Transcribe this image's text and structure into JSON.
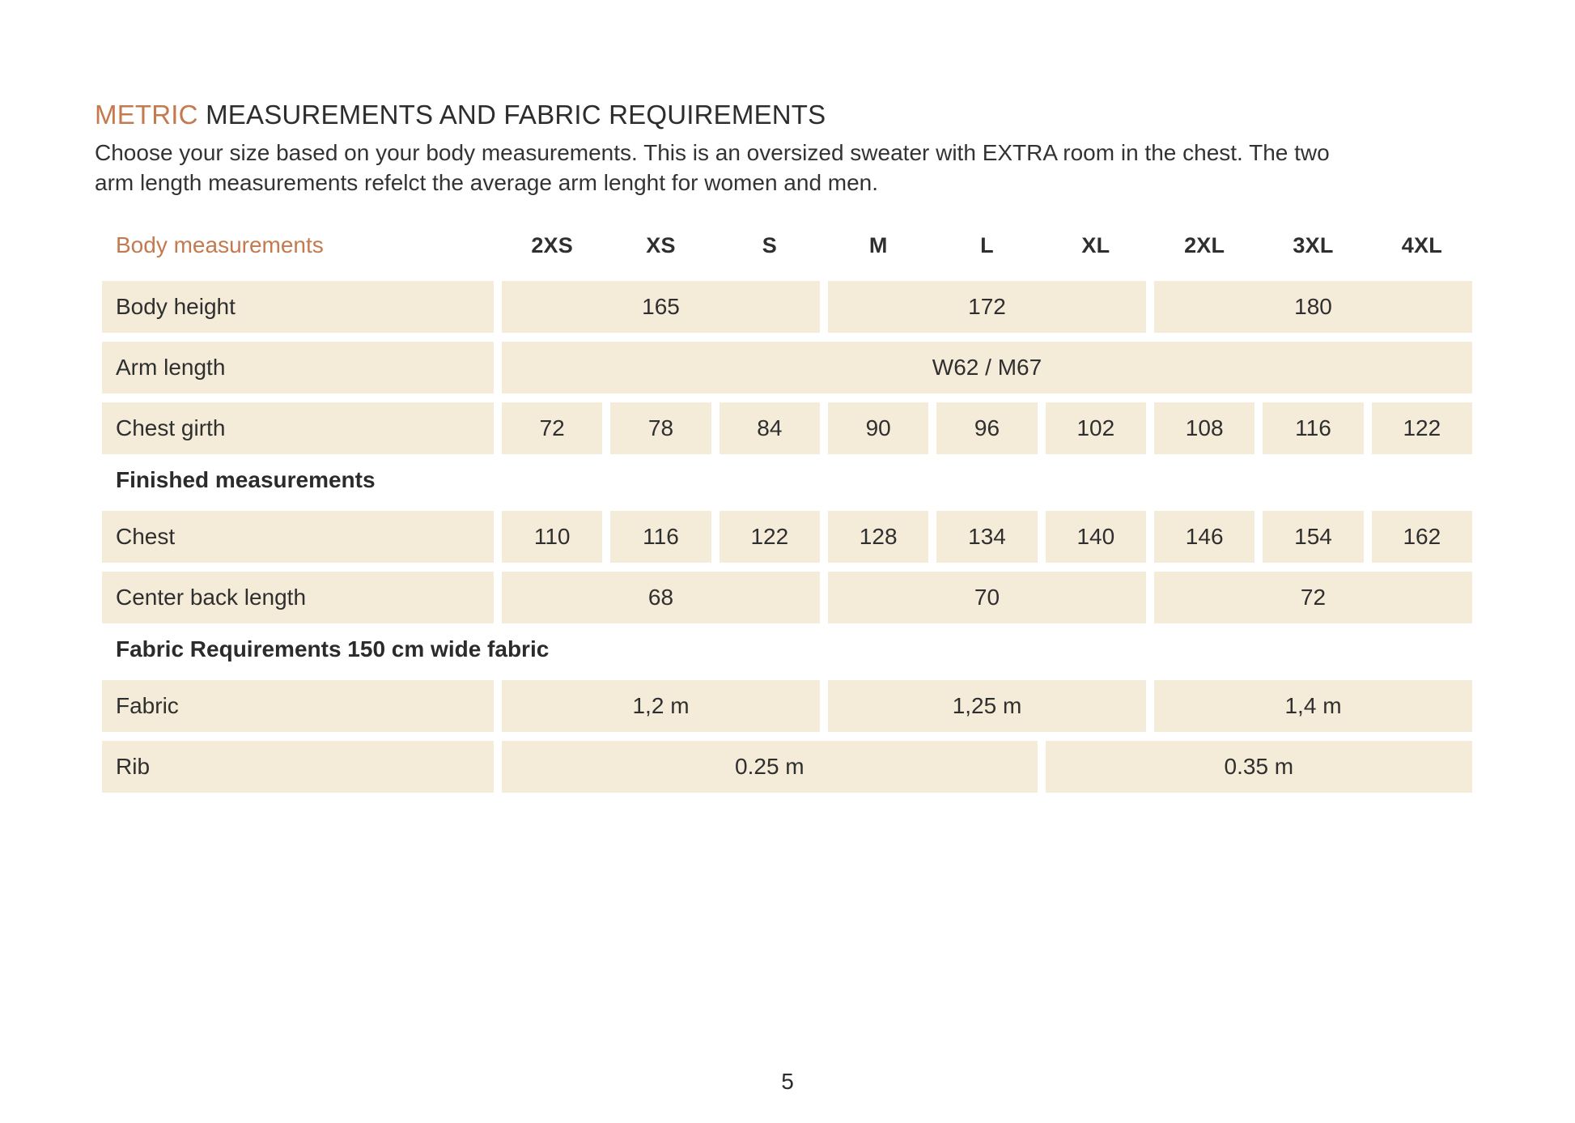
{
  "colors": {
    "accent": "#c5794e",
    "cell_bg": "#f4ecd9",
    "text": "#2d2d2d",
    "page_bg": "#ffffff"
  },
  "header": {
    "title_accent": "METRIC",
    "title_rest": "MEASUREMENTS AND FABRIC REQUIREMENTS",
    "intro_line1": "Choose your size based on your body measurements. This is an oversized sweater with EXTRA room in the chest. The two",
    "intro_line2": "arm length measurements refelct the average arm lenght for women and men."
  },
  "table": {
    "corner_label": "Body measurements",
    "sizes": [
      "2XS",
      "XS",
      "S",
      "M",
      "L",
      "XL",
      "2XL",
      "3XL",
      "4XL"
    ],
    "rows": [
      {
        "type": "data",
        "label": "Body height",
        "cells": [
          {
            "text": "165",
            "span": 3
          },
          {
            "text": "172",
            "span": 3
          },
          {
            "text": "180",
            "span": 3
          }
        ]
      },
      {
        "type": "data",
        "label": "Arm length",
        "cells": [
          {
            "text": "W62 / M67",
            "span": 9
          }
        ]
      },
      {
        "type": "data",
        "label": "Chest girth",
        "cells": [
          {
            "text": "72",
            "span": 1
          },
          {
            "text": "78",
            "span": 1
          },
          {
            "text": "84",
            "span": 1
          },
          {
            "text": "90",
            "span": 1
          },
          {
            "text": "96",
            "span": 1
          },
          {
            "text": "102",
            "span": 1
          },
          {
            "text": "108",
            "span": 1
          },
          {
            "text": "116",
            "span": 1
          },
          {
            "text": "122",
            "span": 1
          }
        ]
      },
      {
        "type": "section",
        "label": "Finished measurements"
      },
      {
        "type": "data",
        "label": "Chest",
        "cells": [
          {
            "text": "110",
            "span": 1
          },
          {
            "text": "116",
            "span": 1
          },
          {
            "text": "122",
            "span": 1
          },
          {
            "text": "128",
            "span": 1
          },
          {
            "text": "134",
            "span": 1
          },
          {
            "text": "140",
            "span": 1
          },
          {
            "text": "146",
            "span": 1
          },
          {
            "text": "154",
            "span": 1
          },
          {
            "text": "162",
            "span": 1
          }
        ]
      },
      {
        "type": "data",
        "label": "Center back length",
        "cells": [
          {
            "text": "68",
            "span": 3
          },
          {
            "text": "70",
            "span": 3
          },
          {
            "text": "72",
            "span": 3
          }
        ]
      },
      {
        "type": "section",
        "label": "Fabric Requirements 150 cm wide fabric"
      },
      {
        "type": "data",
        "label": "Fabric",
        "cells": [
          {
            "text": "1,2 m",
            "span": 3
          },
          {
            "text": "1,25 m",
            "span": 3
          },
          {
            "text": "1,4 m",
            "span": 3
          }
        ]
      },
      {
        "type": "data",
        "label": "Rib",
        "cells": [
          {
            "text": "0.25 m",
            "span": 5
          },
          {
            "text": "0.35 m",
            "span": 4
          }
        ]
      }
    ]
  },
  "footer": {
    "page_number": "5"
  }
}
